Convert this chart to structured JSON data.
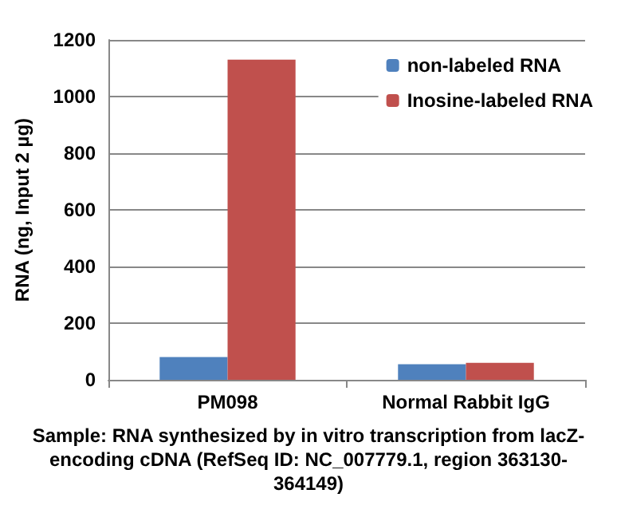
{
  "chart_data": {
    "type": "bar",
    "categories": [
      "PM098",
      "Normal Rabbit IgG"
    ],
    "series": [
      {
        "name": "non-labeled RNA",
        "color": "#4f81bd",
        "values": [
          80,
          55
        ]
      },
      {
        "name": "Inosine-labeled RNA",
        "color": "#c0504d",
        "values": [
          1130,
          60
        ]
      }
    ],
    "ylabel": "RNA (ng, Input 2 µg)",
    "ylim": [
      0,
      1200
    ],
    "yticks": [
      0,
      200,
      400,
      600,
      800,
      1000,
      1200
    ],
    "grid": "y",
    "legend": "top right",
    "annotations": [
      "Sample: RNA synthesized by in vitro transcription from lacZ-encoding cDNA (RefSeq ID: NC_007779.1, region 363130-364149)"
    ]
  }
}
